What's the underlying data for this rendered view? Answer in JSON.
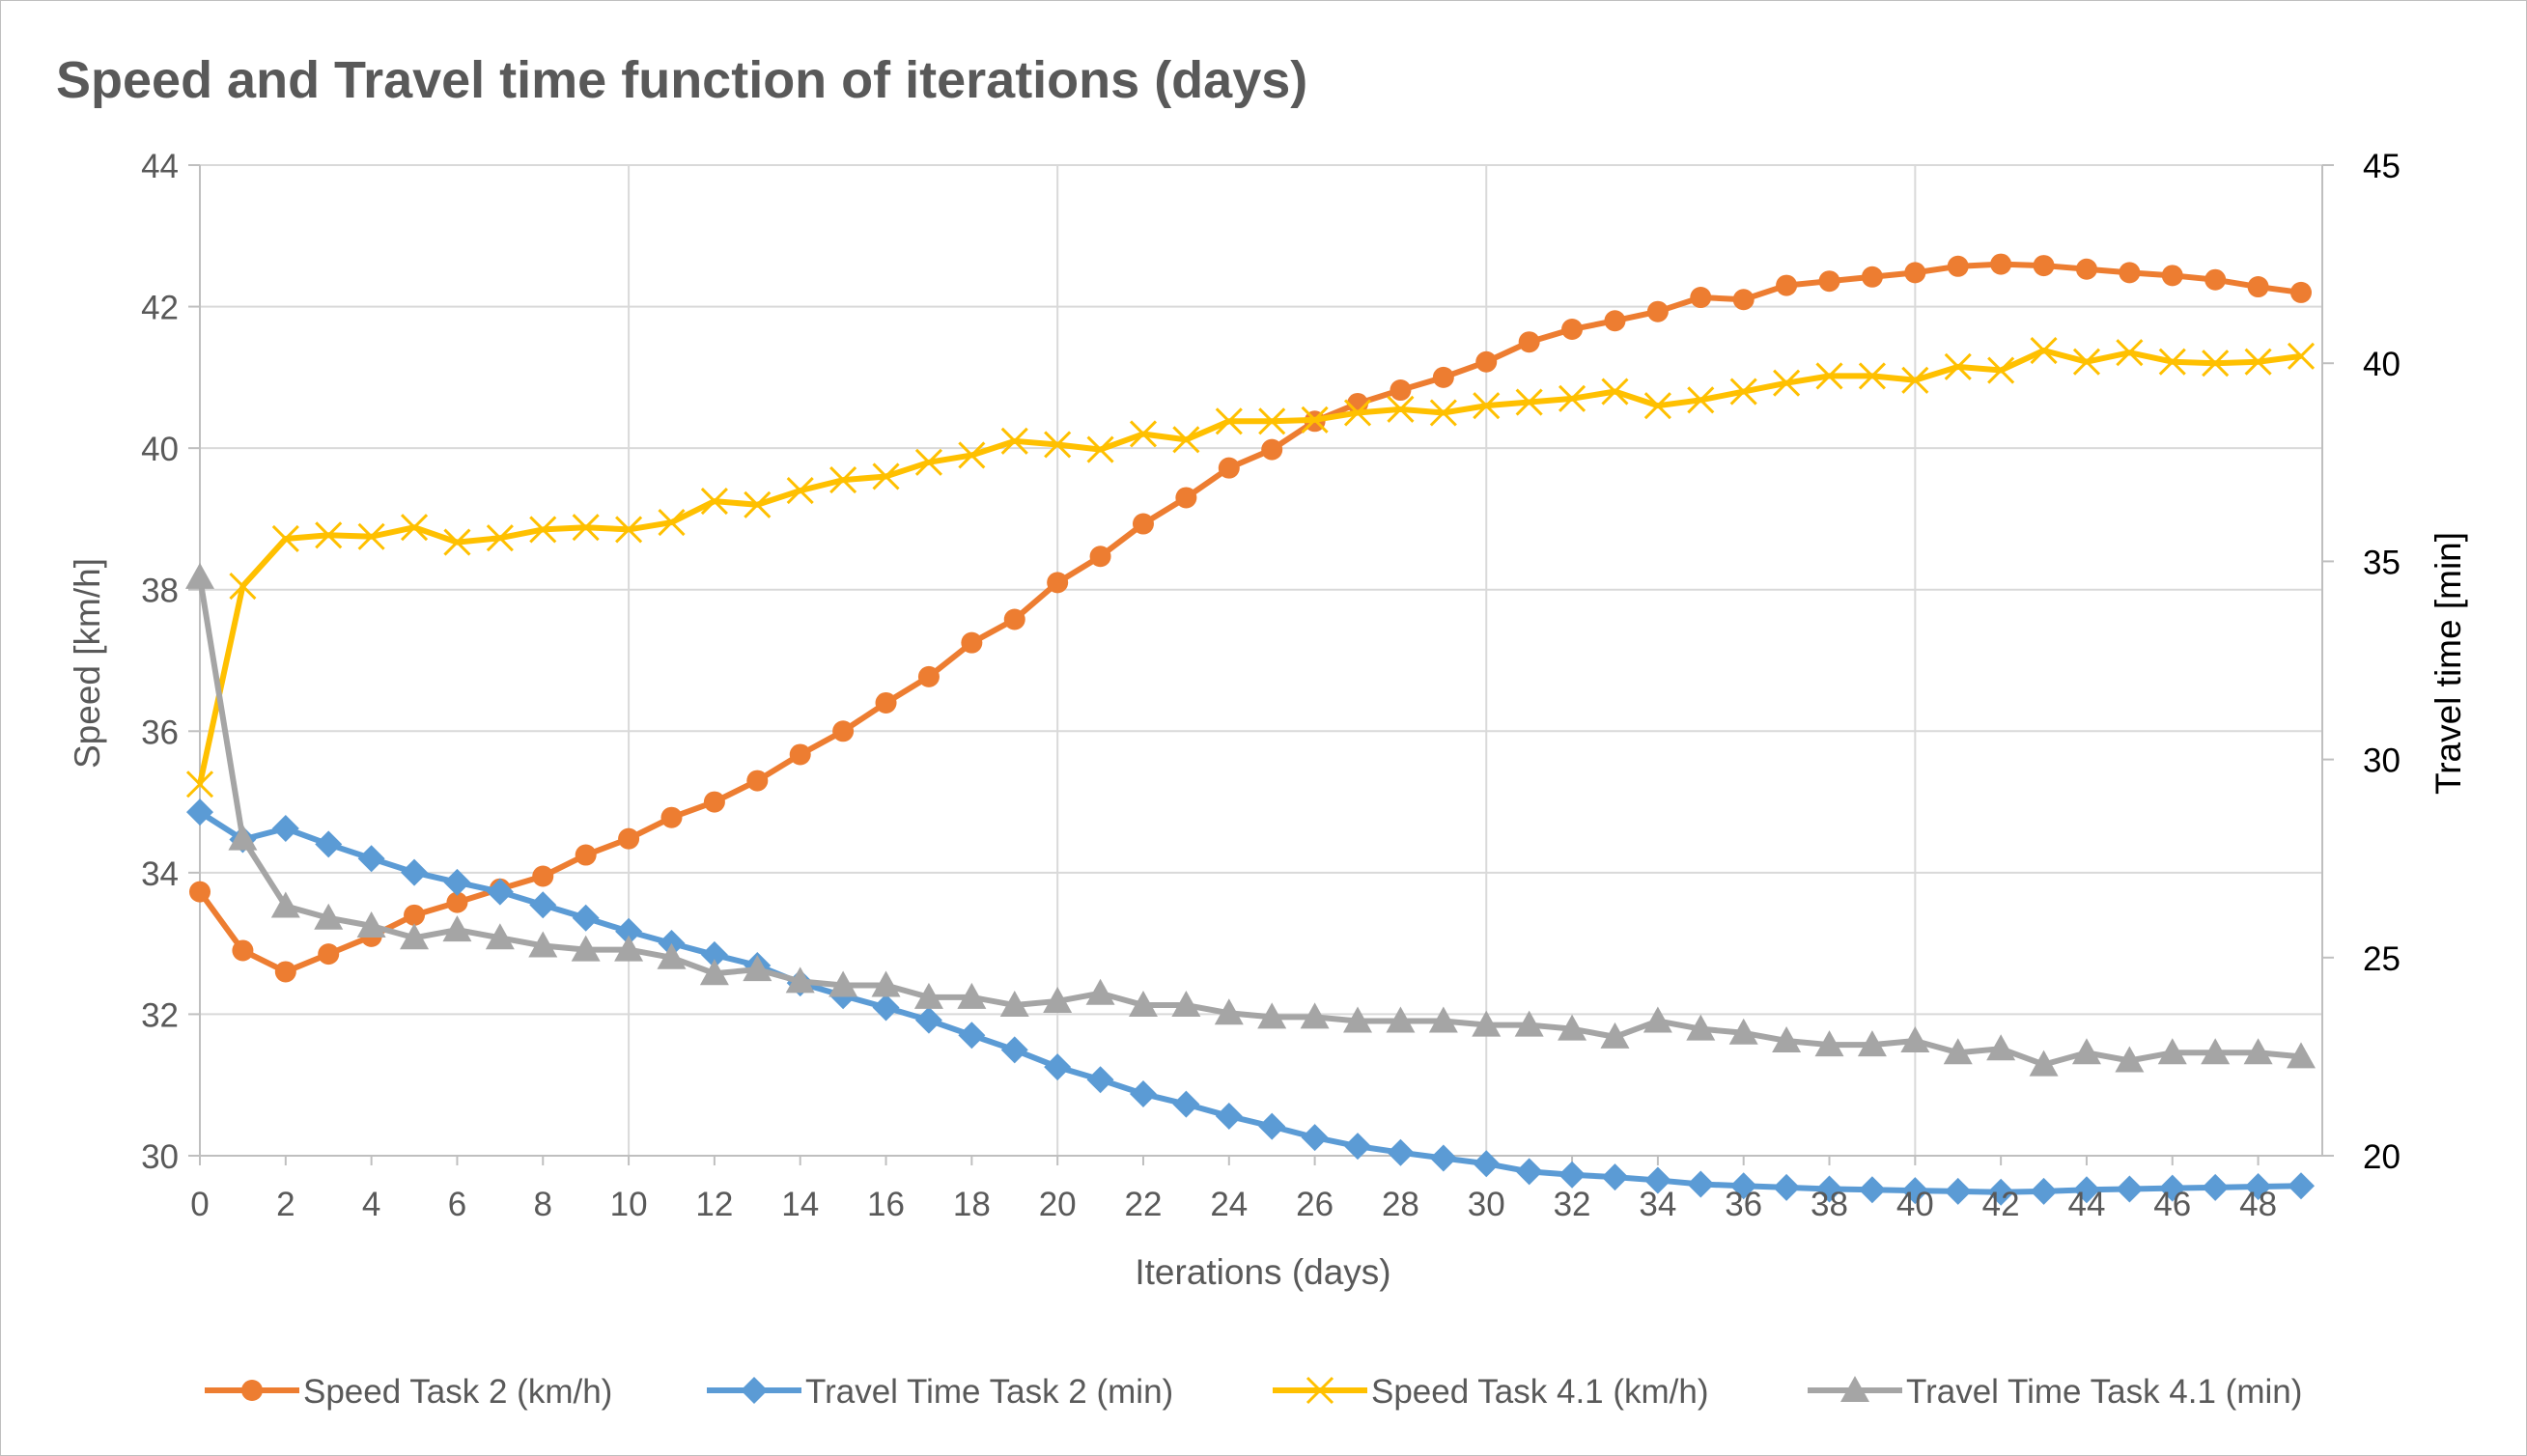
{
  "chart_data": {
    "type": "line",
    "title": "Speed and Travel time function of iterations (days)",
    "xlabel": "Iterations (days)",
    "ylabel": "Speed [km/h]",
    "y2label": "Travel time [min]",
    "xlim": [
      0,
      49
    ],
    "ylim": [
      30,
      44
    ],
    "y2lim": [
      20,
      45
    ],
    "xticks": [
      "0",
      "2",
      "4",
      "6",
      "8",
      "10",
      "12",
      "14",
      "16",
      "18",
      "20",
      "22",
      "24",
      "26",
      "28",
      "30",
      "32",
      "34",
      "36",
      "38",
      "40",
      "42",
      "44",
      "46",
      "48"
    ],
    "yticks": [
      "30",
      "32",
      "34",
      "36",
      "38",
      "40",
      "42",
      "44"
    ],
    "y2ticks": [
      "20",
      "25",
      "30",
      "35",
      "40",
      "45"
    ],
    "grid": true,
    "legend_position": "bottom",
    "x": [
      0,
      1,
      2,
      3,
      4,
      5,
      6,
      7,
      8,
      9,
      10,
      11,
      12,
      13,
      14,
      15,
      16,
      17,
      18,
      19,
      20,
      21,
      22,
      23,
      24,
      25,
      26,
      27,
      28,
      29,
      30,
      31,
      32,
      33,
      34,
      35,
      36,
      37,
      38,
      39,
      40,
      41,
      42,
      43,
      44,
      45,
      46,
      47,
      48,
      49
    ],
    "series": [
      {
        "name": "Speed Task 2 (km/h)",
        "axis": "left",
        "color": "#ed7d31",
        "marker": "circle",
        "values": [
          33.73,
          32.9,
          32.6,
          32.85,
          33.1,
          33.4,
          33.58,
          33.77,
          33.95,
          34.25,
          34.48,
          34.78,
          35.0,
          35.3,
          35.67,
          36.0,
          36.4,
          36.77,
          37.25,
          37.58,
          38.1,
          38.47,
          38.93,
          39.3,
          39.72,
          39.98,
          40.38,
          40.63,
          40.82,
          41.0,
          41.22,
          41.5,
          41.68,
          41.8,
          41.93,
          42.13,
          42.1,
          42.3,
          42.36,
          42.42,
          42.48,
          42.57,
          42.6,
          42.58,
          42.53,
          42.48,
          42.44,
          42.38,
          42.28,
          42.2
        ]
      },
      {
        "name": "Travel Time Task 2 (min)",
        "axis": "right",
        "color": "#5b9bd5",
        "marker": "diamond",
        "values": [
          28.67,
          27.98,
          28.26,
          27.86,
          27.5,
          27.15,
          26.9,
          26.66,
          26.33,
          26.0,
          25.66,
          25.36,
          25.07,
          24.8,
          24.36,
          24.04,
          23.74,
          23.42,
          23.04,
          22.67,
          22.24,
          21.92,
          21.56,
          21.3,
          21.0,
          20.74,
          20.46,
          20.24,
          20.08,
          19.94,
          19.8,
          19.6,
          19.52,
          19.46,
          19.38,
          19.28,
          19.24,
          19.2,
          19.16,
          19.14,
          19.12,
          19.1,
          19.08,
          19.1,
          19.14,
          19.16,
          19.18,
          19.2,
          19.22,
          19.24
        ]
      },
      {
        "name": "Speed Task 4.1 (km/h)",
        "axis": "left",
        "color": "#ffc000",
        "marker": "x",
        "values": [
          35.25,
          38.05,
          38.72,
          38.77,
          38.75,
          38.88,
          38.67,
          38.73,
          38.85,
          38.88,
          38.85,
          38.95,
          39.25,
          39.2,
          39.4,
          39.55,
          39.6,
          39.8,
          39.9,
          40.1,
          40.05,
          39.98,
          40.2,
          40.12,
          40.38,
          40.38,
          40.4,
          40.5,
          40.55,
          40.5,
          40.6,
          40.65,
          40.7,
          40.8,
          40.6,
          40.68,
          40.8,
          40.92,
          41.02,
          41.02,
          40.96,
          41.15,
          41.1,
          41.38,
          41.22,
          41.35,
          41.22,
          41.2,
          41.22,
          41.3
        ]
      },
      {
        "name": "Travel Time Task 4.1 (min)",
        "axis": "right",
        "color": "#a5a5a5",
        "marker": "triangle",
        "values": [
          34.6,
          28.0,
          26.3,
          26.0,
          25.8,
          25.5,
          25.7,
          25.5,
          25.3,
          25.2,
          25.2,
          25.0,
          24.6,
          24.7,
          24.4,
          24.3,
          24.3,
          24.0,
          24.0,
          23.8,
          23.9,
          24.1,
          23.8,
          23.8,
          23.6,
          23.5,
          23.5,
          23.4,
          23.4,
          23.4,
          23.3,
          23.3,
          23.2,
          23.0,
          23.4,
          23.2,
          23.1,
          22.9,
          22.8,
          22.8,
          22.9,
          22.6,
          22.7,
          22.3,
          22.6,
          22.4,
          22.6,
          22.6,
          22.6,
          22.5
        ]
      }
    ]
  }
}
